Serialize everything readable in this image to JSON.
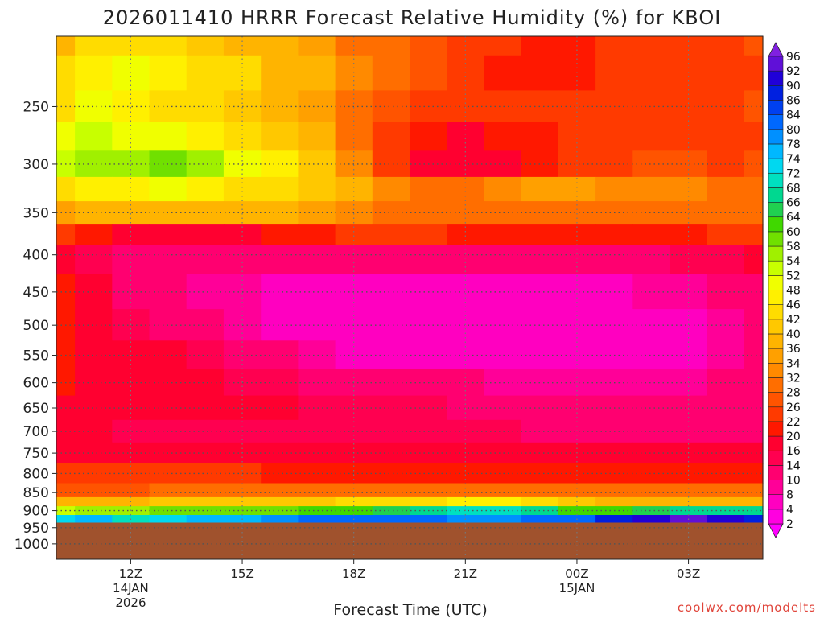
{
  "chart_data": {
    "type": "heatmap",
    "title": "2026011410 HRRR Forecast Relative Humidity (%) for KBOI",
    "xlabel": "Forecast Time (UTC)",
    "ylabel": "",
    "x_ticks": [
      {
        "hour": 12,
        "label": "12Z",
        "sub": [
          "14JAN",
          "2026"
        ]
      },
      {
        "hour": 15,
        "label": "15Z",
        "sub": []
      },
      {
        "hour": 18,
        "label": "18Z",
        "sub": []
      },
      {
        "hour": 21,
        "label": "21Z",
        "sub": []
      },
      {
        "hour": 24,
        "label": "00Z",
        "sub": [
          "15JAN"
        ]
      },
      {
        "hour": 27,
        "label": "03Z",
        "sub": []
      }
    ],
    "xlim": [
      10,
      29
    ],
    "y_ticks": [
      250,
      300,
      350,
      400,
      450,
      500,
      550,
      600,
      650,
      700,
      750,
      800,
      850,
      900,
      950,
      1000
    ],
    "ylim": [
      200,
      1050
    ],
    "y_scale": "log-pressure",
    "grid": true,
    "ground_level_hPa": 935,
    "colorbar": {
      "levels": [
        2,
        4,
        8,
        10,
        14,
        16,
        20,
        22,
        26,
        28,
        32,
        34,
        36,
        40,
        42,
        46,
        48,
        52,
        54,
        58,
        60,
        64,
        66,
        68,
        72,
        74,
        78,
        80,
        84,
        86,
        90,
        92,
        96
      ],
      "colors": [
        "#ff00ff",
        "#ff00e0",
        "#ff00c0",
        "#ff0098",
        "#ff0070",
        "#ff0050",
        "#ff0030",
        "#ff1800",
        "#ff3a00",
        "#ff5400",
        "#ff6e00",
        "#ff8a00",
        "#ffa000",
        "#ffb400",
        "#ffc800",
        "#ffdc00",
        "#fff000",
        "#f0ff00",
        "#c8ff00",
        "#a0f000",
        "#70e000",
        "#40d800",
        "#20d050",
        "#00d890",
        "#00e0c0",
        "#00d8f0",
        "#00b8ff",
        "#0090ff",
        "#0068ff",
        "#0040f0",
        "#0020e0",
        "#2000d8",
        "#6010d8",
        "#8020e0"
      ]
    },
    "cells": {
      "hours": [
        10,
        11,
        12,
        13,
        14,
        15,
        16,
        17,
        18,
        19,
        20,
        21,
        22,
        23,
        24,
        25,
        26,
        27,
        28,
        29
      ],
      "levels_hPa": [
        200,
        225,
        250,
        275,
        300,
        325,
        350,
        375,
        400,
        450,
        500,
        550,
        600,
        650,
        700,
        750,
        800,
        850,
        875,
        900,
        925
      ],
      "values": [
        [
          38,
          42,
          44,
          42,
          40,
          38,
          36,
          34,
          30,
          28,
          26,
          24,
          22,
          20,
          20,
          22,
          22,
          22,
          24,
          26
        ],
        [
          42,
          46,
          48,
          46,
          44,
          42,
          38,
          36,
          32,
          30,
          26,
          22,
          20,
          20,
          20,
          22,
          22,
          22,
          22,
          22
        ],
        [
          44,
          48,
          46,
          44,
          42,
          40,
          38,
          34,
          30,
          26,
          24,
          22,
          22,
          22,
          22,
          24,
          24,
          22,
          24,
          26
        ],
        [
          48,
          52,
          50,
          48,
          46,
          42,
          40,
          36,
          28,
          22,
          20,
          18,
          20,
          20,
          22,
          24,
          24,
          24,
          22,
          24
        ],
        [
          52,
          54,
          56,
          58,
          56,
          50,
          46,
          40,
          32,
          24,
          18,
          16,
          18,
          20,
          22,
          24,
          26,
          26,
          24,
          26
        ],
        [
          44,
          46,
          46,
          48,
          46,
          44,
          42,
          40,
          36,
          32,
          30,
          30,
          32,
          34,
          34,
          32,
          32,
          32,
          30,
          30
        ],
        [
          34,
          36,
          36,
          36,
          36,
          36,
          36,
          34,
          32,
          30,
          28,
          28,
          28,
          28,
          28,
          28,
          28,
          30,
          30,
          28
        ],
        [
          22,
          20,
          18,
          18,
          18,
          18,
          20,
          20,
          22,
          22,
          22,
          20,
          20,
          20,
          20,
          20,
          20,
          20,
          22,
          22
        ],
        [
          18,
          14,
          12,
          12,
          12,
          12,
          12,
          12,
          12,
          12,
          12,
          12,
          12,
          12,
          12,
          12,
          12,
          14,
          14,
          16
        ],
        [
          20,
          16,
          12,
          10,
          8,
          8,
          6,
          6,
          6,
          6,
          6,
          6,
          6,
          6,
          6,
          6,
          8,
          8,
          10,
          12
        ],
        [
          20,
          18,
          14,
          12,
          10,
          8,
          6,
          4,
          4,
          4,
          4,
          4,
          4,
          4,
          4,
          4,
          4,
          6,
          8,
          10
        ],
        [
          20,
          18,
          16,
          16,
          14,
          12,
          10,
          8,
          6,
          6,
          6,
          6,
          4,
          4,
          4,
          4,
          6,
          6,
          8,
          10
        ],
        [
          20,
          18,
          16,
          16,
          16,
          14,
          14,
          12,
          10,
          10,
          10,
          10,
          8,
          8,
          8,
          8,
          8,
          8,
          10,
          12
        ],
        [
          18,
          18,
          16,
          16,
          16,
          16,
          16,
          14,
          14,
          14,
          14,
          12,
          12,
          10,
          10,
          10,
          10,
          10,
          12,
          12
        ],
        [
          16,
          16,
          14,
          14,
          14,
          14,
          14,
          14,
          14,
          14,
          14,
          14,
          14,
          12,
          12,
          12,
          12,
          12,
          12,
          12
        ],
        [
          16,
          16,
          16,
          16,
          16,
          16,
          16,
          16,
          16,
          16,
          16,
          16,
          16,
          16,
          16,
          16,
          16,
          16,
          16,
          16
        ],
        [
          22,
          22,
          22,
          22,
          22,
          22,
          20,
          20,
          20,
          20,
          20,
          20,
          20,
          20,
          20,
          20,
          20,
          20,
          20,
          20
        ],
        [
          26,
          26,
          26,
          28,
          28,
          28,
          28,
          28,
          28,
          28,
          28,
          28,
          28,
          28,
          28,
          28,
          28,
          28,
          28,
          28
        ],
        [
          36,
          36,
          38,
          40,
          40,
          40,
          40,
          40,
          42,
          42,
          44,
          46,
          46,
          42,
          40,
          38,
          38,
          38,
          38,
          38
        ],
        [
          52,
          54,
          56,
          58,
          58,
          58,
          58,
          60,
          62,
          64,
          66,
          70,
          70,
          66,
          62,
          62,
          64,
          66,
          66,
          66
        ],
        [
          72,
          74,
          70,
          72,
          74,
          76,
          78,
          80,
          82,
          82,
          80,
          78,
          78,
          80,
          82,
          86,
          90,
          92,
          90,
          88
        ]
      ]
    }
  },
  "colors": {
    "ground": "#a0522d",
    "grid": "#555555",
    "title": "#222222",
    "credit": "#e0443a"
  },
  "credit": "coolwx.com/modelts"
}
